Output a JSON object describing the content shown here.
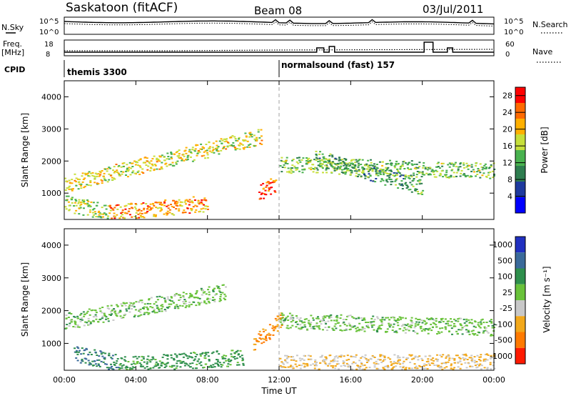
{
  "header": {
    "station": "Saskatoon (fitACF)",
    "beam": "Beam 08",
    "date": "03/Jul/2011"
  },
  "summary": {
    "nsky_label": "N.Sky",
    "nsky_ticks": [
      "10^5",
      "10^0"
    ],
    "nsearch_label": "N.Search",
    "nsearch_ticks": [
      "10^5",
      "10^0"
    ],
    "freq_label_1": "Freq.",
    "freq_label_2": "[MHz]",
    "freq_ticks": [
      "18",
      "8"
    ],
    "nave_label": "Nave",
    "nave_ticks": [
      "60",
      "0"
    ],
    "cpid_label": "CPID",
    "cpid_entries": [
      {
        "name": "themis 3300",
        "start_hour": 0
      },
      {
        "name": "normalsound (fast) 157",
        "start_hour": 12
      }
    ]
  },
  "chart_data": [
    {
      "type": "heatmap",
      "name": "power",
      "ylabel": "Slant Range [km]",
      "xlabel": "Time UT",
      "xlim": [
        0,
        24
      ],
      "ylim": [
        180,
        4500
      ],
      "xticks": [
        "00:00",
        "04:00",
        "08:00",
        "12:00",
        "16:00",
        "20:00",
        "00:00"
      ],
      "yticks": [
        1000,
        2000,
        3000,
        4000
      ],
      "colorbar": {
        "label": "Power [dB]",
        "ticks": [
          4,
          8,
          12,
          16,
          20,
          24,
          28
        ],
        "range": [
          0,
          30
        ],
        "colors": [
          "#0000ff",
          "#1e3a9e",
          "#2e7d4f",
          "#49b24f",
          "#c6df3a",
          "#ffb000",
          "#ff6a00",
          "#ff0000"
        ]
      },
      "features": [
        {
          "from_hour": 0.0,
          "to_hour": 11.0,
          "range_start": 1300,
          "range_end": 2800,
          "power": 18
        },
        {
          "from_hour": 0.0,
          "to_hour": 2.5,
          "range_start": 700,
          "range_end": 400,
          "power": 16
        },
        {
          "from_hour": 2.5,
          "to_hour": 8.0,
          "range_start": 400,
          "range_end": 700,
          "power": 22
        },
        {
          "from_hour": 10.8,
          "to_hour": 11.8,
          "range_start": 1050,
          "range_end": 1300,
          "power": 26
        },
        {
          "from_hour": 12.0,
          "to_hour": 24.0,
          "range_start": 1900,
          "range_end": 1700,
          "power": 14
        },
        {
          "from_hour": 14.0,
          "to_hour": 20.0,
          "range_start": 2100,
          "range_end": 1200,
          "power": 12
        }
      ]
    },
    {
      "type": "heatmap",
      "name": "velocity",
      "ylabel": "Slant Range [km]",
      "xlabel": "Time UT",
      "xlim": [
        0,
        24
      ],
      "ylim": [
        180,
        4500
      ],
      "xticks": [
        "00:00",
        "04:00",
        "08:00",
        "12:00",
        "16:00",
        "20:00",
        "00:00"
      ],
      "yticks": [
        1000,
        2000,
        3000,
        4000
      ],
      "colorbar": {
        "label": "Velocity [m s⁻¹]",
        "ticks": [
          "1000",
          "500",
          "100",
          "25",
          "-25",
          "-100",
          "-500",
          "-1000"
        ],
        "colors": [
          "#2030c0",
          "#3a6a9a",
          "#2e8f4c",
          "#69c23a",
          "#c8c8c8",
          "#f2a81b",
          "#ff7a00",
          "#ff1a00"
        ]
      },
      "features": [
        {
          "from_hour": 0.0,
          "to_hour": 9.0,
          "range_start": 1700,
          "range_end": 2600,
          "velocity": 0
        },
        {
          "from_hour": 0.5,
          "to_hour": 3.0,
          "range_start": 700,
          "range_end": 400,
          "velocity": 100
        },
        {
          "from_hour": 3.0,
          "to_hour": 10.0,
          "range_start": 350,
          "range_end": 600,
          "velocity": 50
        },
        {
          "from_hour": 10.5,
          "to_hour": 12.2,
          "range_start": 1000,
          "range_end": 1800,
          "velocity": -500
        },
        {
          "from_hour": 12.0,
          "to_hour": 24.0,
          "range_start": 1700,
          "range_end": 1500,
          "velocity": 0
        },
        {
          "from_hour": 12.0,
          "to_hour": 24.0,
          "range_start": 400,
          "range_end": 450,
          "velocity": -100
        }
      ]
    }
  ],
  "colors": {
    "frame": "#000000",
    "dashed_line": "#a0a0a0"
  }
}
